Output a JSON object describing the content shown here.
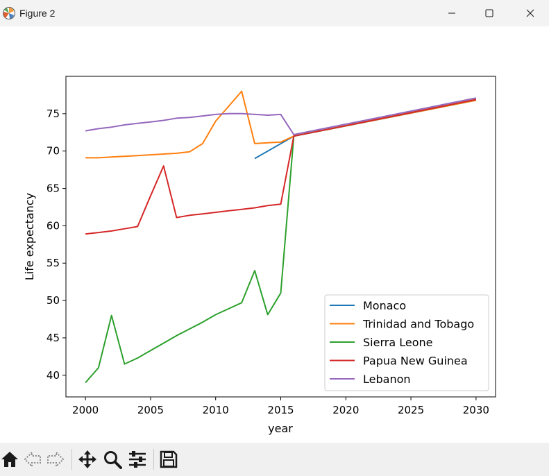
{
  "window": {
    "title": "Figure 2",
    "minimize_icon": "minimize-icon",
    "maximize_icon": "maximize-icon",
    "close_icon": "close-icon"
  },
  "toolbar": {
    "items": [
      "home-icon",
      "back-icon",
      "forward-icon",
      "pan-icon",
      "zoom-icon",
      "configure-subplots-icon",
      "save-icon"
    ]
  },
  "chart_data": {
    "type": "line",
    "title": "",
    "xlabel": "year",
    "ylabel": "Life expectancy",
    "xlim": [
      1998.5,
      2031.5
    ],
    "ylim": [
      37.1,
      80.0
    ],
    "xticks": [
      2000,
      2005,
      2010,
      2015,
      2020,
      2025,
      2030
    ],
    "yticks": [
      40,
      45,
      50,
      55,
      60,
      65,
      70,
      75
    ],
    "grid": false,
    "legend_position": "lower-right",
    "series": [
      {
        "name": "Monaco",
        "color": "#1f77b4",
        "x": [
          2013,
          2016,
          2030
        ],
        "y": [
          69.0,
          72.0,
          76.8
        ]
      },
      {
        "name": "Trinidad and Tobago",
        "color": "#ff7f0e",
        "x": [
          2000,
          2001,
          2002,
          2003,
          2004,
          2005,
          2006,
          2007,
          2008,
          2009,
          2010,
          2011,
          2012,
          2013,
          2014,
          2015,
          2016,
          2030
        ],
        "y": [
          69.1,
          69.1,
          69.2,
          69.3,
          69.4,
          69.5,
          69.6,
          69.7,
          69.9,
          71.0,
          74.0,
          76.0,
          78.0,
          71.0,
          71.1,
          71.2,
          72.0,
          76.8
        ]
      },
      {
        "name": "Sierra Leone",
        "color": "#2ca02c",
        "x": [
          2000,
          2001,
          2002,
          2003,
          2004,
          2005,
          2006,
          2007,
          2008,
          2009,
          2010,
          2011,
          2012,
          2013,
          2014,
          2015,
          2016,
          2030
        ],
        "y": [
          39.0,
          41.0,
          48.0,
          41.5,
          42.3,
          43.3,
          44.3,
          45.3,
          46.2,
          47.1,
          48.1,
          48.9,
          49.7,
          54.0,
          48.1,
          51.0,
          72.0,
          76.9
        ]
      },
      {
        "name": "Papua New Guinea",
        "color": "#d62728",
        "x": [
          2000,
          2001,
          2002,
          2003,
          2004,
          2005,
          2006,
          2007,
          2008,
          2009,
          2010,
          2011,
          2012,
          2013,
          2014,
          2015,
          2016,
          2030
        ],
        "y": [
          58.9,
          59.1,
          59.3,
          59.6,
          59.9,
          64.0,
          68.0,
          61.1,
          61.4,
          61.6,
          61.8,
          62.0,
          62.2,
          62.4,
          62.7,
          62.9,
          72.0,
          76.9
        ]
      },
      {
        "name": "Lebanon",
        "color": "#9467bd",
        "x": [
          2000,
          2001,
          2002,
          2003,
          2004,
          2005,
          2006,
          2007,
          2008,
          2009,
          2010,
          2011,
          2012,
          2013,
          2014,
          2015,
          2016,
          2030
        ],
        "y": [
          72.7,
          73.0,
          73.2,
          73.5,
          73.7,
          73.9,
          74.1,
          74.4,
          74.5,
          74.7,
          74.9,
          75.0,
          75.0,
          74.9,
          74.8,
          74.9,
          72.2,
          77.1
        ]
      }
    ]
  }
}
